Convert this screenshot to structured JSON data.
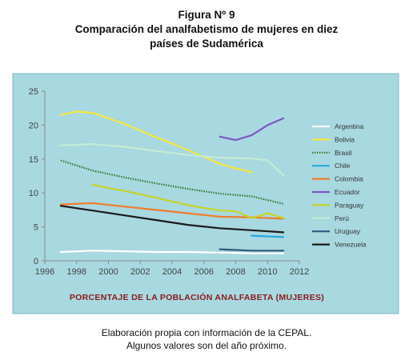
{
  "figure": {
    "number_label": "Figura Nº 9",
    "title_line1": "Comparación del analfabetismo de mujeres en diez",
    "title_line2": "países de Sudamérica",
    "caption_line1": "Elaboración propia con información de la CEPAL.",
    "caption_line2": "Algunos valores son del año próximo."
  },
  "chart_data": {
    "type": "line",
    "title": "",
    "xlabel": "PORCENTAJE DE LA POBLACIÓN ANALFABETA (MUJERES)",
    "ylabel": "",
    "xlim": [
      1996,
      2012
    ],
    "ylim": [
      0,
      25
    ],
    "x_ticks": [
      1996,
      1998,
      2000,
      2002,
      2004,
      2006,
      2008,
      2010,
      2012
    ],
    "y_ticks": [
      0,
      5,
      10,
      15,
      20,
      25
    ],
    "grid": false,
    "legend_position": "right",
    "colors": {
      "outer_background": "#a8d8e0",
      "plot_background": "#ffffff",
      "footer_text": "#8b1a1a"
    },
    "series": [
      {
        "name": "Argentina",
        "color": "#ffffff",
        "style": "solid",
        "x": [
          1997,
          1999,
          2001,
          2003,
          2005,
          2007,
          2009,
          2011
        ],
        "y": [
          1.3,
          1.5,
          1.4,
          1.3,
          1.3,
          1.2,
          1.1,
          1.1
        ]
      },
      {
        "name": "Bolivia",
        "color": "#f5e642",
        "style": "solid",
        "x": [
          1997,
          1998,
          1999,
          2000,
          2001,
          2002,
          2003,
          2004,
          2005,
          2006,
          2007,
          2008,
          2009
        ],
        "y": [
          21.5,
          22.0,
          21.8,
          21.0,
          20.2,
          19.2,
          18.2,
          17.3,
          16.3,
          15.3,
          14.3,
          13.6,
          13.1
        ]
      },
      {
        "name": "Brasil",
        "color": "#2e7d32",
        "style": "dotted",
        "x": [
          1997,
          1999,
          2001,
          2003,
          2005,
          2007,
          2009,
          2011
        ],
        "y": [
          14.8,
          13.3,
          12.3,
          11.4,
          10.6,
          9.9,
          9.5,
          8.4
        ]
      },
      {
        "name": "Chile",
        "color": "#29a8e0",
        "style": "solid",
        "x": [
          2009,
          2010,
          2011
        ],
        "y": [
          3.7,
          3.6,
          3.5
        ]
      },
      {
        "name": "Colombia",
        "color": "#f07d2e",
        "style": "solid",
        "x": [
          1997,
          1999,
          2001,
          2003,
          2005,
          2007,
          2009,
          2011
        ],
        "y": [
          8.3,
          8.5,
          8.0,
          7.5,
          7.0,
          6.5,
          6.4,
          6.2
        ]
      },
      {
        "name": "Ecuador",
        "color": "#7e57c2",
        "style": "solid",
        "x": [
          2007,
          2008,
          2009,
          2010,
          2011
        ],
        "y": [
          18.3,
          17.8,
          18.5,
          20.0,
          21.0
        ]
      },
      {
        "name": "Paraguay",
        "color": "#c6d32a",
        "style": "solid",
        "x": [
          1999,
          2001,
          2003,
          2005,
          2007,
          2008,
          2009,
          2010,
          2011
        ],
        "y": [
          11.2,
          10.3,
          9.3,
          8.2,
          7.4,
          7.3,
          6.3,
          7.0,
          6.3
        ]
      },
      {
        "name": "Perú",
        "color": "#c4ecd4",
        "style": "solid",
        "x": [
          1997,
          1999,
          2001,
          2003,
          2005,
          2007,
          2009,
          2010,
          2011
        ],
        "y": [
          17.0,
          17.2,
          16.8,
          16.2,
          15.6,
          15.2,
          15.1,
          14.8,
          12.6
        ]
      },
      {
        "name": "Uruguay",
        "color": "#31587a",
        "style": "solid",
        "x": [
          2007,
          2009,
          2011
        ],
        "y": [
          1.7,
          1.5,
          1.5
        ]
      },
      {
        "name": "Venezuela",
        "color": "#1a1a1a",
        "style": "solid",
        "x": [
          1997,
          1999,
          2001,
          2003,
          2005,
          2007,
          2009,
          2011
        ],
        "y": [
          8.1,
          7.4,
          6.7,
          6.0,
          5.3,
          4.8,
          4.5,
          4.2
        ]
      }
    ]
  }
}
